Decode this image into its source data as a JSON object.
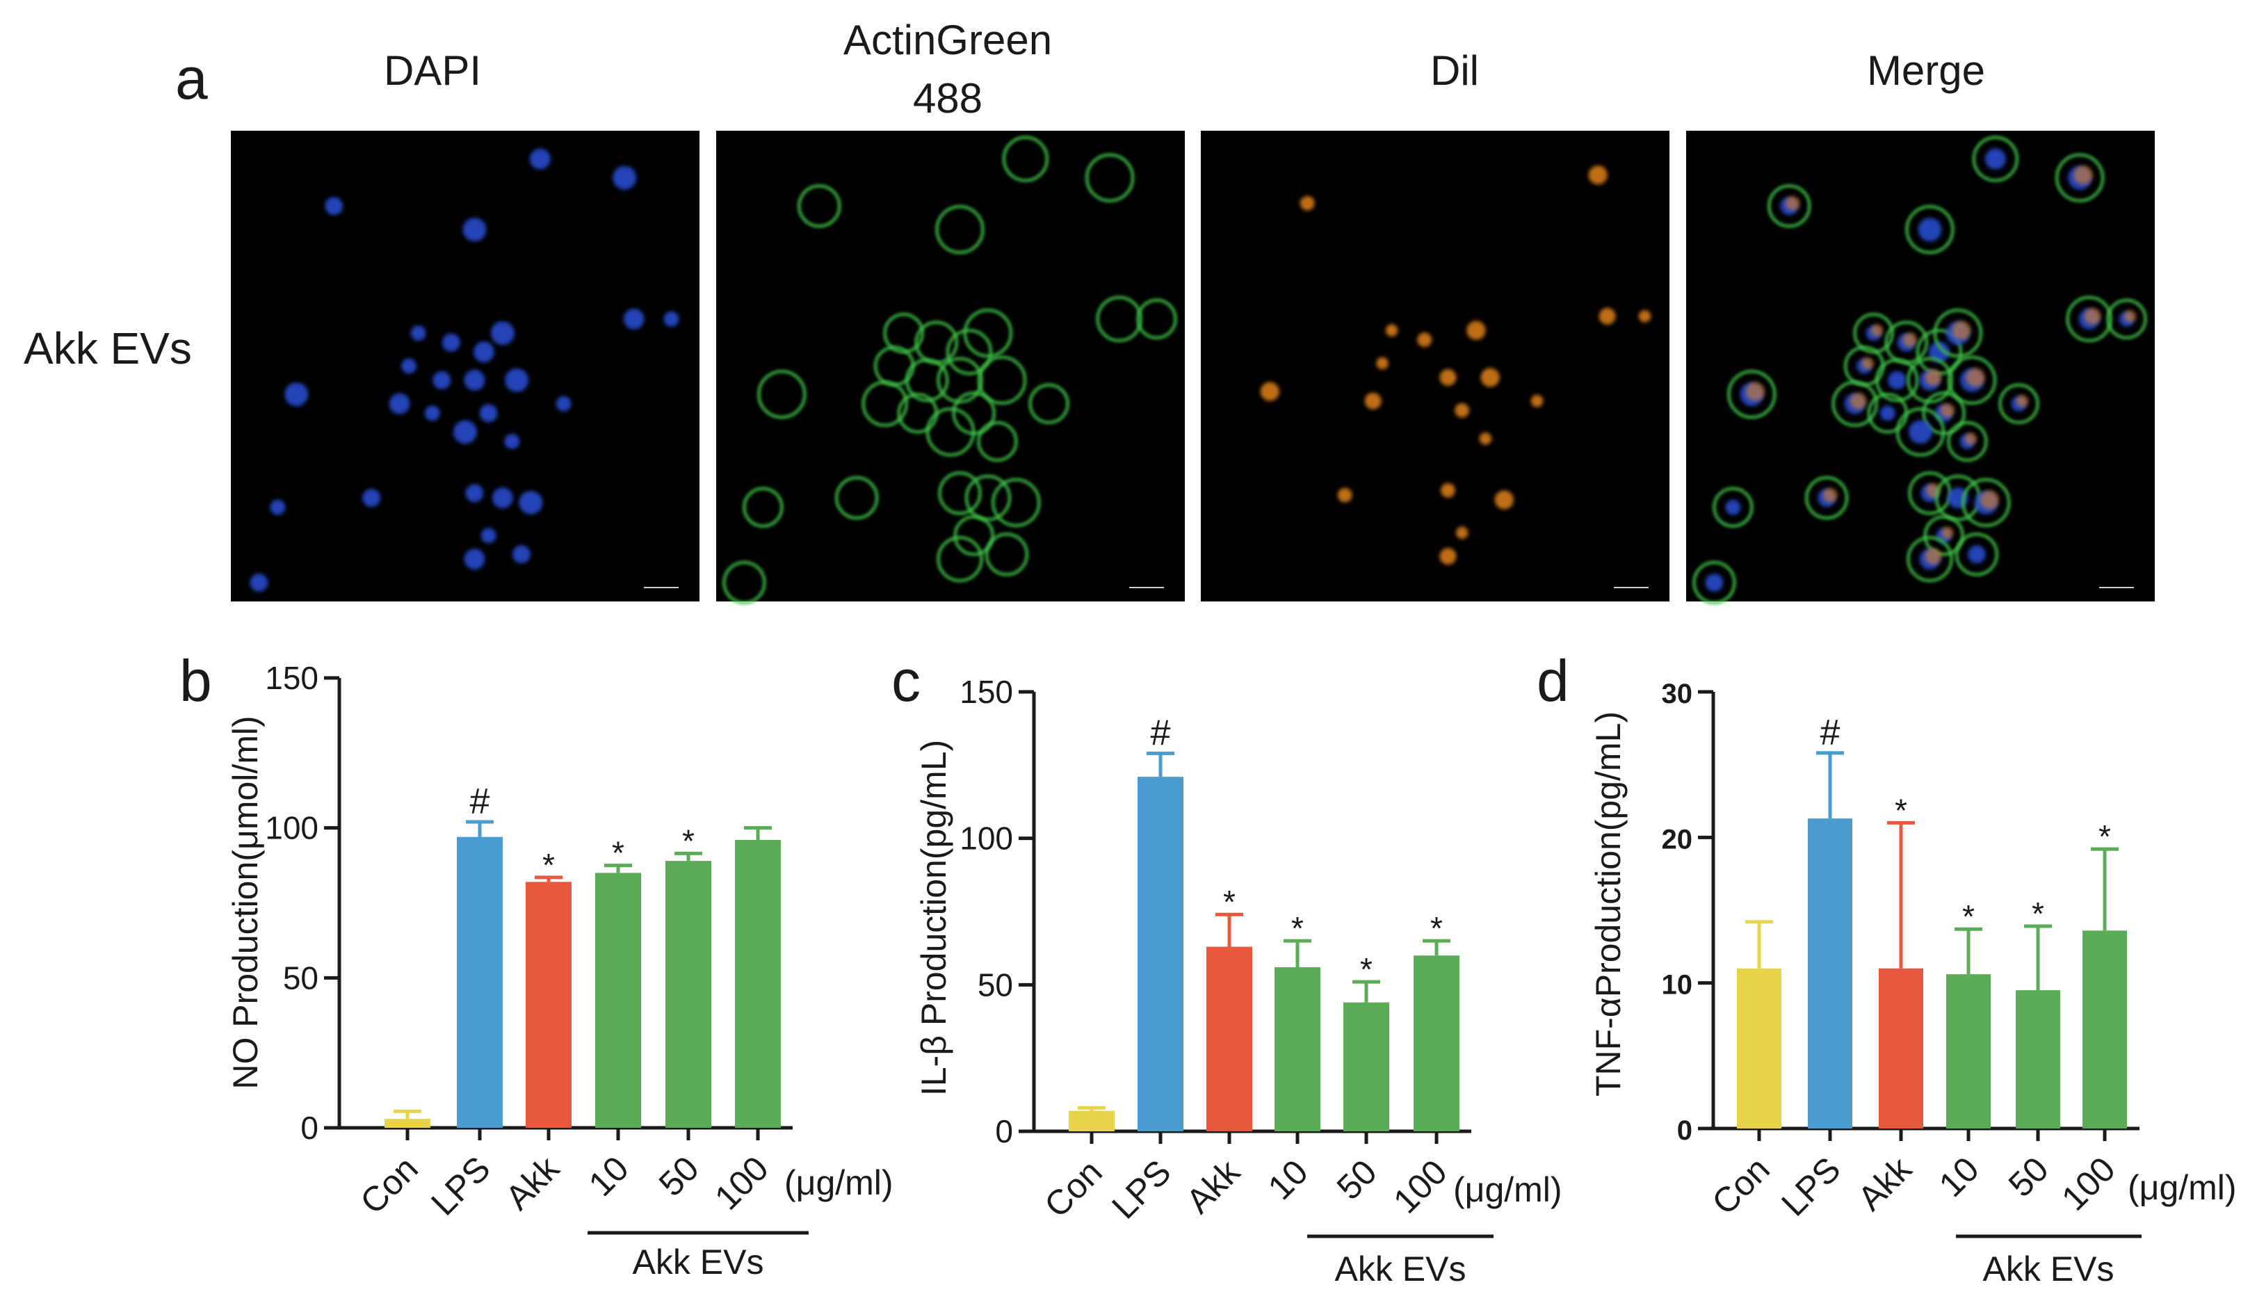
{
  "panel_a": {
    "letter": "a",
    "row_label": "Akk EVs",
    "columns": [
      {
        "title_lines": [
          "DAPI"
        ],
        "channel": "blue"
      },
      {
        "title_lines": [
          "ActinGreen",
          "488"
        ],
        "channel": "green"
      },
      {
        "title_lines": [
          "Dil"
        ],
        "channel": "orange"
      },
      {
        "title_lines": [
          "Merge"
        ],
        "channel": "merge"
      }
    ]
  },
  "colors": {
    "con": "#e8d44a",
    "lps": "#4a9bd0",
    "akk": "#e8583f",
    "evs": "#5aac57",
    "axis": "#1a1a1a"
  },
  "chart_data": [
    {
      "letter": "b",
      "type": "bar",
      "ylabel": "NO Production(μmol/ml)",
      "ylim": [
        0,
        150
      ],
      "yticks": [
        "0",
        "50",
        "100",
        "150"
      ],
      "tick_style": "normal",
      "categories": [
        "Con",
        "LPS",
        "Akk",
        "10",
        "50",
        "100"
      ],
      "unit_label": "(μg/ml)",
      "group_label": "Akk EVs",
      "values": [
        3,
        97,
        82,
        85,
        89,
        96
      ],
      "errors": [
        2.5,
        5,
        1.5,
        2.5,
        2.5,
        4
      ],
      "significance": [
        "",
        "#",
        "*",
        "*",
        "*",
        ""
      ]
    },
    {
      "letter": "c",
      "type": "bar",
      "ylabel": "IL-β Production(pg/mL)",
      "ylim": [
        0,
        150
      ],
      "yticks": [
        "0",
        "50",
        "100",
        "150"
      ],
      "tick_style": "normal",
      "categories": [
        "Con",
        "LPS",
        "Akk",
        "10",
        "50",
        "100"
      ],
      "unit_label": "(μg/ml)",
      "group_label": "Akk EVs",
      "values": [
        7,
        121,
        63,
        56,
        44,
        60
      ],
      "errors": [
        1,
        8,
        11,
        9,
        7,
        5
      ],
      "significance": [
        "",
        "#",
        "*",
        "*",
        "*",
        "*"
      ]
    },
    {
      "letter": "d",
      "type": "bar",
      "ylabel": "TNF-αProduction(pg/mL)",
      "ylim": [
        0,
        30
      ],
      "yticks": [
        "0",
        "10",
        "20",
        "30"
      ],
      "tick_style": "bold",
      "categories": [
        "Con",
        "LPS",
        "Akk",
        "10",
        "50",
        "100"
      ],
      "unit_label": "(μg/ml)",
      "group_label": "Akk EVs",
      "values": [
        11,
        21.3,
        11,
        10.6,
        9.5,
        13.6
      ],
      "errors": [
        3.2,
        4.5,
        10,
        3.1,
        4.4,
        5.6
      ],
      "significance": [
        "",
        "#",
        "*",
        "*",
        "*",
        "*"
      ]
    }
  ]
}
